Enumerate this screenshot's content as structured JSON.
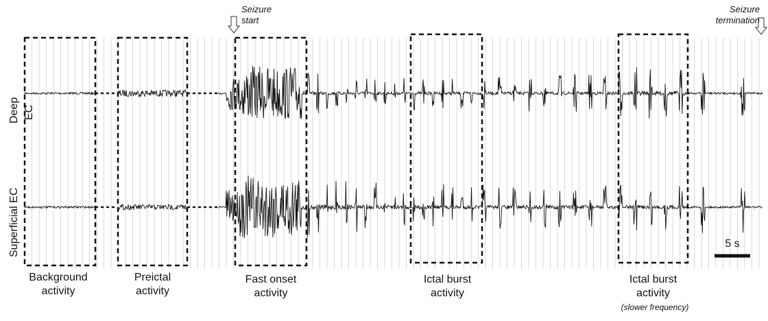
{
  "channels": [
    {
      "label_line1": "Deep",
      "label_line2": "EC"
    },
    {
      "label": "Superficial EC"
    }
  ],
  "boxes": [
    {
      "label": "Background\nactivity"
    },
    {
      "label": "Preictal\nactivity"
    },
    {
      "label": "Fast onset\nactivity"
    },
    {
      "label": "Ictal burst\nactivity"
    },
    {
      "label": "Ictal burst\nactivity",
      "note": "(slower frequency)"
    }
  ],
  "markers": {
    "start": "Seizure\nstart",
    "end": "Seizure\ntermination"
  },
  "scale_bar": {
    "label": "5 s",
    "seconds": 5
  },
  "colors": {
    "trace": "#111111",
    "grid": "#d8d8d8",
    "box": "#111111"
  }
}
